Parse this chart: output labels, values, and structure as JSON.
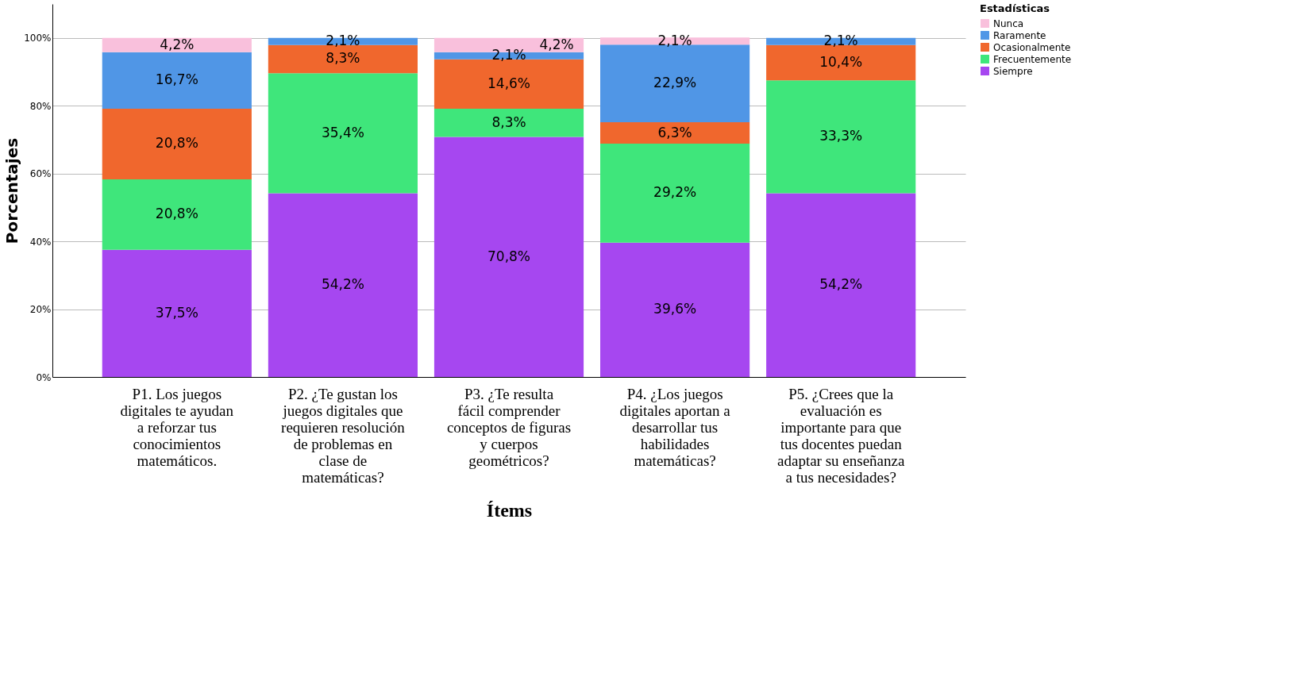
{
  "chart_data": {
    "type": "bar",
    "stacked": true,
    "xlabel": "Ítems",
    "ylabel": "Porcentajes",
    "legend_title": "Estadísticas",
    "categories": [
      "P1. Los juegos digitales te ayudan a reforzar tus conocimientos matemáticos.",
      "P2. ¿Te gustan los juegos digitales que requieren resolución de problemas en clase de matemáticas?",
      "P3. ¿Te resulta fácil comprender conceptos de figuras y cuerpos geométricos?",
      "P4. ¿Los juegos digitales aportan a desarrollar tus habilidades matemáticas?",
      "P5. ¿Crees que la evaluación es importante para que tus docentes puedan adaptar su enseñanza a tus necesidades?"
    ],
    "series": [
      {
        "name": "Siempre",
        "color": "#a647f0",
        "values": [
          37.5,
          54.2,
          70.8,
          39.6,
          54.2
        ],
        "value_labels": [
          "37,5%",
          "54,2%",
          "70,8%",
          "39,6%",
          "54,2%"
        ]
      },
      {
        "name": "Frecuentemente",
        "color": "#3fe67b",
        "values": [
          20.8,
          35.4,
          8.3,
          29.2,
          33.3
        ],
        "value_labels": [
          "20,8%",
          "35,4%",
          "8,3%",
          "29,2%",
          "33,3%"
        ]
      },
      {
        "name": "Ocasionalmente",
        "color": "#f0672d",
        "values": [
          20.8,
          8.3,
          14.6,
          6.3,
          10.4
        ],
        "value_labels": [
          "20,8%",
          "8,3%",
          "14,6%",
          "6,3%",
          "10,4%"
        ]
      },
      {
        "name": "Raramente",
        "color": "#5096e6",
        "values": [
          16.7,
          2.1,
          2.1,
          22.9,
          2.1
        ],
        "value_labels": [
          "16,7%",
          "2,1%",
          "2,1%",
          "22,9%",
          "2,1%"
        ]
      },
      {
        "name": "Nunca",
        "color": "#f9c0dc",
        "values": [
          4.2,
          null,
          4.2,
          2.1,
          null
        ],
        "value_labels": [
          "4,2%",
          null,
          "4,2%",
          "2,1%",
          null
        ]
      }
    ],
    "ylim": [
      0,
      110
    ],
    "yticks": [
      {
        "value": 0,
        "label": "0%"
      },
      {
        "value": 20,
        "label": "20%"
      },
      {
        "value": 40,
        "label": "40%"
      },
      {
        "value": 60,
        "label": "60%"
      },
      {
        "value": 80,
        "label": "80%"
      },
      {
        "value": 100,
        "label": "100%"
      }
    ],
    "grid": "y",
    "legend": "top right"
  }
}
